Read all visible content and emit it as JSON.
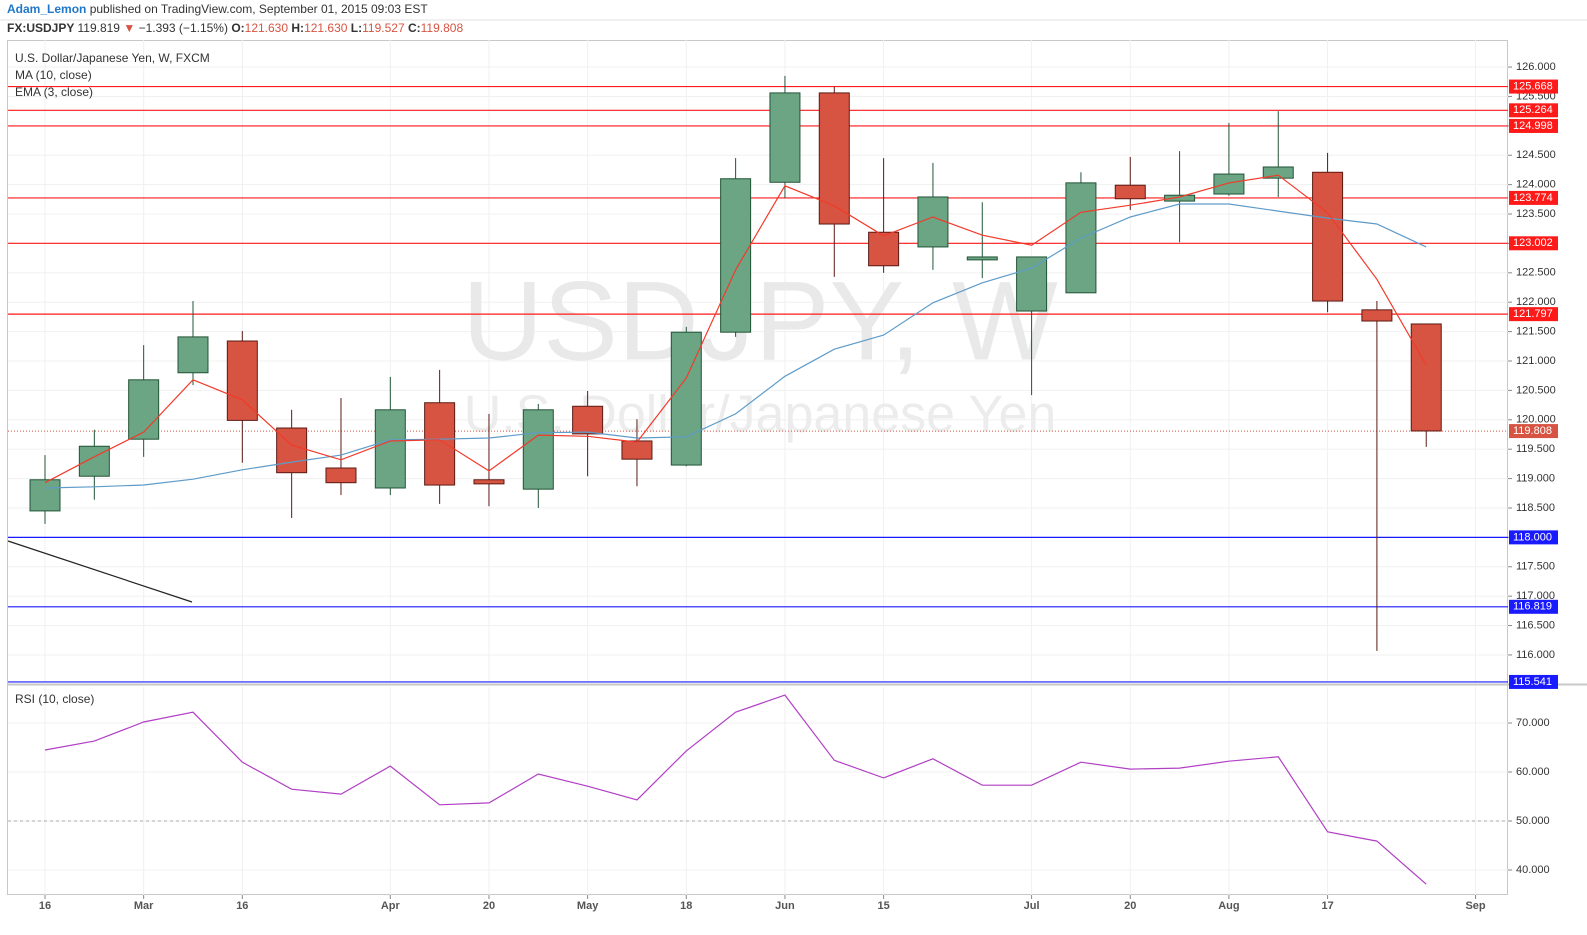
{
  "header": {
    "author": "Adam_Lemon",
    "published": "published on TradingView.com, September 01, 2015 09:03 EST",
    "symbol": "FX:USDJPY",
    "price": "119.819",
    "arrow": "▼",
    "change": "−1.393 (−1.15%)",
    "open_label": "O:",
    "open": "121.630",
    "high_label": "H:",
    "high": "121.630",
    "low_label": "L:",
    "low": "119.527",
    "close_label": "C:",
    "close": "119.808"
  },
  "chart_data": [
    {
      "type": "candlestick",
      "title": "U.S. Dollar/Japanese Yen, W, FXCM",
      "watermark": "USDJPY, W",
      "watermark_subtitle": "U.S. Dollar/Japanese Yen",
      "categories": [
        "16",
        null,
        "Mar",
        null,
        "16",
        null,
        null,
        "Apr",
        null,
        "20",
        null,
        "May",
        null,
        "18",
        null,
        "Jun",
        null,
        "15",
        null,
        null,
        "Jul",
        null,
        "20",
        null,
        "Aug",
        null,
        "17",
        null,
        null,
        "Sep"
      ],
      "open": [
        118.45,
        119.04,
        119.67,
        120.8,
        121.34,
        119.86,
        119.18,
        118.84,
        120.29,
        118.98,
        118.82,
        120.23,
        119.64,
        119.23,
        121.49,
        124.04,
        125.56,
        123.19,
        122.94,
        122.72,
        121.85,
        122.16,
        123.99,
        123.72,
        123.84,
        124.11,
        124.21,
        121.87,
        121.63,
        null
      ],
      "high": [
        119.4,
        119.83,
        121.27,
        122.02,
        121.51,
        120.17,
        120.37,
        120.73,
        120.85,
        120.1,
        120.27,
        120.49,
        120.01,
        121.58,
        124.45,
        125.85,
        125.66,
        124.45,
        124.37,
        123.7,
        122.77,
        124.21,
        124.47,
        124.57,
        125.05,
        125.25,
        124.54,
        122.02,
        121.63,
        null
      ],
      "low": [
        118.23,
        118.64,
        119.37,
        120.59,
        119.27,
        118.33,
        118.72,
        118.72,
        118.57,
        118.53,
        118.5,
        119.04,
        118.87,
        119.21,
        121.41,
        123.77,
        122.43,
        122.5,
        122.55,
        122.41,
        120.42,
        122.16,
        123.57,
        123.02,
        123.81,
        123.79,
        121.83,
        116.07,
        119.54,
        null
      ],
      "close": [
        118.98,
        119.55,
        120.68,
        121.41,
        119.99,
        119.1,
        118.93,
        120.17,
        118.89,
        118.91,
        120.17,
        119.76,
        119.33,
        121.49,
        124.1,
        125.56,
        123.33,
        122.62,
        123.79,
        122.77,
        122.77,
        124.03,
        123.76,
        123.82,
        124.18,
        124.3,
        122.02,
        121.68,
        119.81,
        null
      ],
      "up_color": "#6ba583",
      "down_color": "#d75442",
      "series": [
        {
          "name": "MA (10, close)",
          "color": "#5d9cc9",
          "values": [
            118.84,
            118.86,
            118.89,
            118.99,
            119.15,
            119.28,
            119.4,
            119.66,
            119.67,
            119.69,
            119.78,
            119.79,
            119.69,
            119.71,
            120.1,
            120.74,
            121.2,
            121.44,
            121.99,
            122.33,
            122.58,
            123.09,
            123.45,
            123.67,
            123.67,
            123.55,
            123.43,
            123.33,
            122.94,
            null
          ]
        },
        {
          "name": "EMA (3, close)",
          "color": "#f23a2a",
          "values": [
            118.93,
            119.37,
            119.79,
            120.68,
            120.34,
            119.57,
            119.32,
            119.64,
            119.66,
            119.13,
            119.74,
            119.72,
            119.62,
            120.71,
            122.55,
            123.98,
            123.64,
            123.13,
            123.45,
            123.14,
            122.97,
            123.53,
            123.65,
            123.79,
            124.03,
            124.16,
            123.52,
            122.39,
            120.93,
            null
          ]
        }
      ],
      "hlines": [
        {
          "value": 125.668,
          "color": "#ff1a1a"
        },
        {
          "value": 125.264,
          "color": "#ff1a1a"
        },
        {
          "value": 124.998,
          "color": "#ff1a1a"
        },
        {
          "value": 123.774,
          "color": "#ff1a1a"
        },
        {
          "value": 123.002,
          "color": "#ff1a1a"
        },
        {
          "value": 121.797,
          "color": "#ff1a1a"
        },
        {
          "value": 118,
          "label": "118.000",
          "color": "#1a1aff"
        },
        {
          "value": 116.819,
          "color": "#1a1aff"
        },
        {
          "value": 115.541,
          "color": "#1a1aff"
        }
      ],
      "last_price": {
        "value": 119.808,
        "color": "#d75442"
      },
      "ylim": [
        115.54,
        126.46
      ],
      "yticks": [
        {
          "value": 116,
          "label": "116.000"
        },
        {
          "value": 116.5,
          "label": "116.500"
        },
        {
          "value": 117,
          "label": "117.000"
        },
        {
          "value": 117.5,
          "label": "117.500"
        },
        {
          "value": 118,
          "label": "118.000"
        },
        {
          "value": 118.5,
          "label": "118.500"
        },
        {
          "value": 119,
          "label": "119.000"
        },
        {
          "value": 119.5,
          "label": "119.500"
        },
        {
          "value": 120,
          "label": "120.000"
        },
        {
          "value": 120.5,
          "label": "120.500"
        },
        {
          "value": 121,
          "label": "121.000"
        },
        {
          "value": 121.5,
          "label": "121.500"
        },
        {
          "value": 122,
          "label": "122.000"
        },
        {
          "value": 122.5,
          "label": "122.500"
        },
        {
          "value": 123,
          "label": "123.000"
        },
        {
          "value": 123.5,
          "label": "123.500"
        },
        {
          "value": 124,
          "label": "124.000"
        },
        {
          "value": 124.5,
          "label": "124.500"
        },
        {
          "value": 125,
          "label": "125.000"
        },
        {
          "value": 125.5,
          "label": "125.500"
        },
        {
          "value": 126,
          "label": "126.000"
        }
      ],
      "grid": true
    },
    {
      "type": "line",
      "title": "RSI (10, close)",
      "series": [
        {
          "name": "RSI",
          "color": "#b13fc4",
          "values": [
            64.5,
            66.3,
            70.2,
            72.2,
            62.0,
            56.5,
            55.5,
            61.2,
            53.3,
            53.7,
            59.6,
            57.1,
            54.3,
            64.3,
            72.2,
            75.7,
            62.4,
            58.8,
            62.7,
            57.3,
            57.3,
            62.0,
            60.6,
            60.8,
            62.2,
            63.1,
            47.8,
            45.9,
            37.1,
            null
          ]
        }
      ],
      "reference_line": 50,
      "ylim": [
        34.9,
        77.35
      ],
      "yticks": [
        {
          "value": 40,
          "label": "40.000"
        },
        {
          "value": 50,
          "label": "50.000"
        },
        {
          "value": 60,
          "label": "60.000"
        },
        {
          "value": 70,
          "label": "70.000"
        }
      ],
      "grid": true
    }
  ]
}
